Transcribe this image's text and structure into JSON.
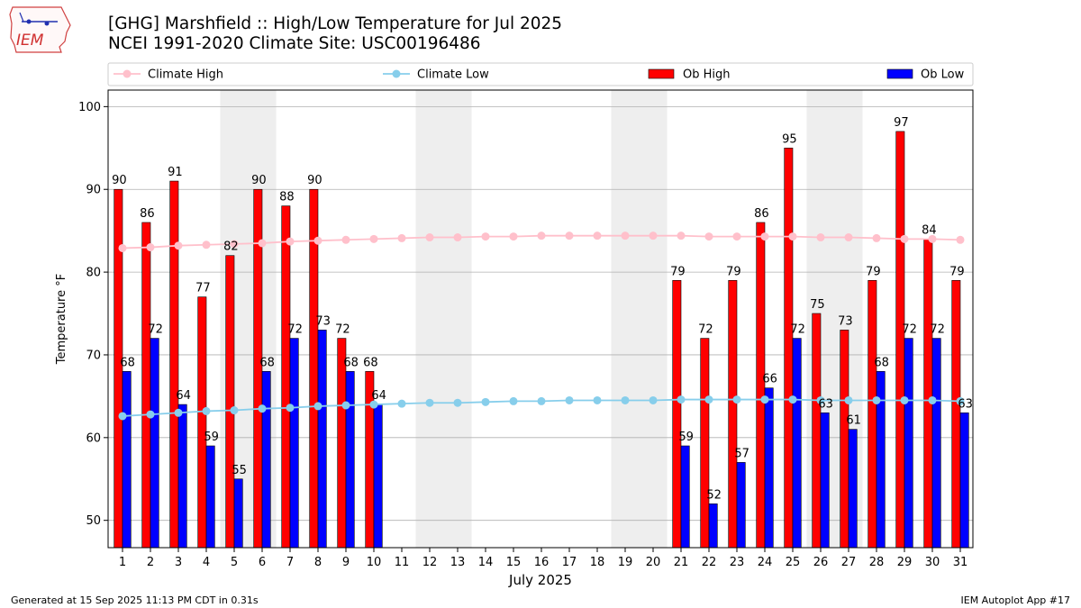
{
  "title_line1": "[GHG] Marshfield :: High/Low Temperature for Jul 2025",
  "title_line2": "NCEI 1991-2020 Climate Site: USC00196486",
  "logo_text": "IEM",
  "footer_left": "Generated at 15 Sep 2025 11:13 PM CDT in 0.31s",
  "footer_right": "IEM Autoplot App #17",
  "colors": {
    "ob_high": "#ff0000",
    "ob_low": "#0000ff",
    "climate_high": "#ffc0cb",
    "climate_low": "#87ceeb",
    "weekend_shade": "#eeeeee",
    "grid": "#b0b0b0"
  },
  "chart_data": {
    "type": "bar",
    "xlabel": "July 2025",
    "ylabel": "Temperature °F",
    "ylim": [
      46.7,
      102
    ],
    "yticks": [
      50,
      60,
      70,
      80,
      90,
      100
    ],
    "grid": "horizontal",
    "legend_placement": "top",
    "shaded_days": [
      [
        5,
        6
      ],
      [
        12,
        13
      ],
      [
        19,
        20
      ],
      [
        26,
        27
      ]
    ],
    "days": [
      1,
      2,
      3,
      4,
      5,
      6,
      7,
      8,
      9,
      10,
      11,
      12,
      13,
      14,
      15,
      16,
      17,
      18,
      19,
      20,
      21,
      22,
      23,
      24,
      25,
      26,
      27,
      28,
      29,
      30,
      31
    ],
    "series": [
      {
        "name": "Climate High",
        "kind": "line",
        "values": [
          82.9,
          83.0,
          83.2,
          83.3,
          83.4,
          83.5,
          83.7,
          83.8,
          83.9,
          84.0,
          84.1,
          84.2,
          84.2,
          84.3,
          84.3,
          84.4,
          84.4,
          84.4,
          84.4,
          84.4,
          84.4,
          84.3,
          84.3,
          84.3,
          84.3,
          84.2,
          84.2,
          84.1,
          84.0,
          84.0,
          83.9
        ]
      },
      {
        "name": "Climate Low",
        "kind": "line",
        "values": [
          62.6,
          62.8,
          63.0,
          63.2,
          63.3,
          63.5,
          63.6,
          63.8,
          63.9,
          64.0,
          64.1,
          64.2,
          64.2,
          64.3,
          64.4,
          64.4,
          64.5,
          64.5,
          64.5,
          64.5,
          64.6,
          64.6,
          64.6,
          64.6,
          64.6,
          64.5,
          64.5,
          64.5,
          64.5,
          64.5,
          64.4
        ]
      },
      {
        "name": "Ob High",
        "kind": "bar",
        "values": [
          90,
          86,
          91,
          77,
          82,
          90,
          88,
          90,
          72,
          68,
          null,
          null,
          null,
          null,
          null,
          null,
          null,
          null,
          null,
          null,
          79,
          72,
          79,
          86,
          95,
          75,
          73,
          79,
          97,
          84,
          79
        ]
      },
      {
        "name": "Ob Low",
        "kind": "bar",
        "values": [
          68,
          72,
          64,
          59,
          55,
          68,
          72,
          73,
          68,
          64,
          null,
          null,
          null,
          null,
          null,
          null,
          null,
          null,
          null,
          null,
          59,
          52,
          57,
          66,
          72,
          63,
          61,
          68,
          72,
          72,
          63
        ]
      }
    ]
  }
}
